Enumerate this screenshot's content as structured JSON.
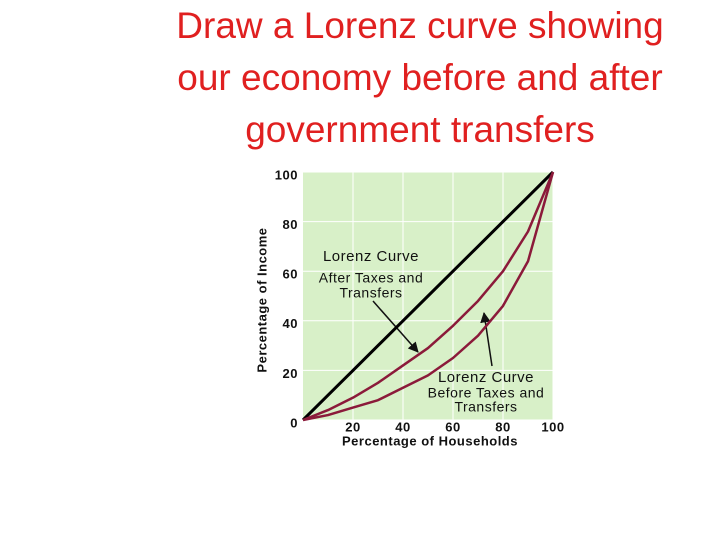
{
  "chart_data": {
    "type": "line",
    "title": [
      "Draw a Lorenz curve showing",
      "our economy before and after",
      "government transfers"
    ],
    "x_label": "Percentage of Households",
    "y_label": "Percentage of Income",
    "x": [
      0,
      10,
      20,
      30,
      40,
      50,
      60,
      70,
      80,
      90,
      100
    ],
    "series": [
      {
        "color": "#000000",
        "values": [
          0,
          10,
          20,
          30,
          40,
          50,
          60,
          70,
          80,
          90,
          100
        ]
      },
      {
        "color": "#8b1a3a",
        "values": [
          0,
          4,
          9,
          15,
          22,
          29,
          38,
          48,
          60,
          76,
          100
        ]
      },
      {
        "color": "#8b1a3a",
        "values": [
          0,
          2,
          5,
          8,
          13,
          18,
          25,
          34,
          46,
          64,
          100
        ]
      }
    ],
    "annotations": [
      {
        "lines": [
          "Lorenz Curve",
          "After Taxes and",
          "Transfers"
        ]
      },
      {
        "lines": [
          "Lorenz Curve",
          "Before Taxes and",
          "Transfers"
        ]
      }
    ],
    "xlim": [
      0,
      100
    ],
    "ylim": [
      0,
      100
    ],
    "xticks": [
      20,
      40,
      60,
      80,
      100
    ],
    "yticks": [
      0,
      20,
      40,
      60,
      80,
      100
    ],
    "grid": true,
    "background": "#d8f0c8"
  }
}
